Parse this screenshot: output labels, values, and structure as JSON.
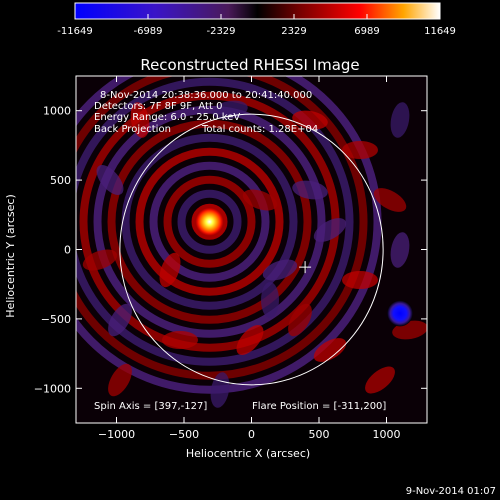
{
  "chart_data": {
    "type": "heatmap",
    "title": "Reconstructed RHESSI Image",
    "xlabel": "Heliocentric X (arcsec)",
    "ylabel": "Heliocentric Y (arcsec)",
    "xlim": [
      -1300,
      1300
    ],
    "ylim": [
      -1250,
      1250
    ],
    "xticks": [
      -1000,
      -500,
      0,
      500,
      1000
    ],
    "yticks": [
      -1000,
      -500,
      0,
      500,
      1000
    ],
    "colorbar": {
      "ticks": [
        "-11649",
        "-6989",
        "-2329",
        "2329",
        "6989",
        "11649"
      ],
      "range": [
        -11649,
        11649
      ]
    },
    "annotations": {
      "time_range": "8-Nov-2014 20:38:36.000 to 20:41:40.000",
      "detectors": "Detectors: 7F 8F 9F, Att 0",
      "energy": "Energy Range: 6.0 - 25.0 keV",
      "method": "Back Projection",
      "counts": "Total counts: 1.28E+04",
      "spin_axis": "Spin Axis = [397,-127]",
      "flare_position": "Flare Position = [-311,200]",
      "timestamp": "9-Nov-2014 01:07"
    },
    "solar_limb": {
      "center": [
        0,
        0
      ],
      "radius": 975
    },
    "spin_axis_marker": [
      397,
      -127
    ],
    "sources": [
      {
        "type": "positive",
        "x": -311,
        "y": 200,
        "value": 11649
      },
      {
        "type": "negative",
        "x": 1100,
        "y": -460,
        "value": -11649
      }
    ],
    "grid": false
  }
}
